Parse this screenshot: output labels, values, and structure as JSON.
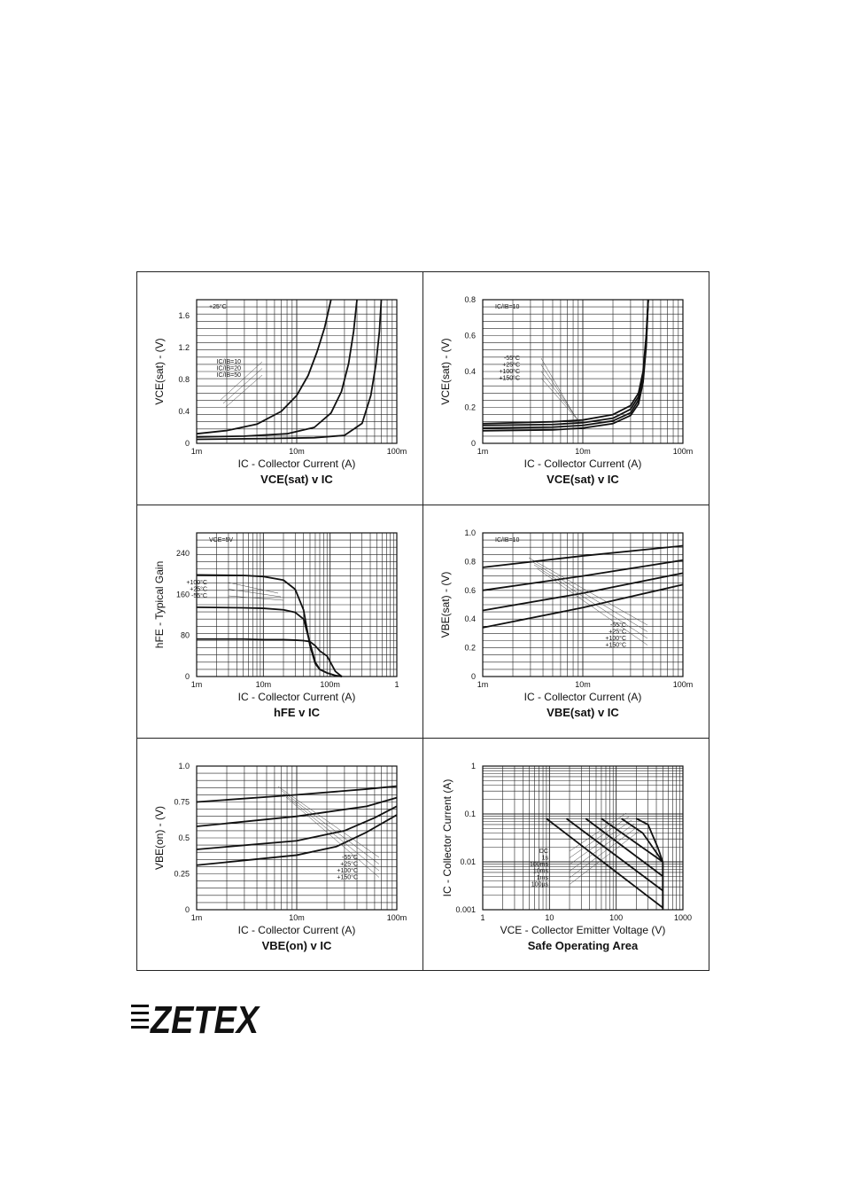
{
  "brand": {
    "name": "ZETEX"
  },
  "charts": [
    {
      "type": "line",
      "caption": "VCE(sat) v IC",
      "xlabel": "IC - Collector Current (A)",
      "ylabel": "VCE(sat) - (V)",
      "xscale": "log",
      "xlim": [
        0.001,
        0.1
      ],
      "x_ticks": [
        {
          "v": 0.001,
          "label": "1m"
        },
        {
          "v": 0.01,
          "label": "10m"
        },
        {
          "v": 0.1,
          "label": "100m"
        }
      ],
      "ylim": [
        0,
        1.8
      ],
      "y_ticks": [
        {
          "v": 0,
          "label": "0"
        },
        {
          "v": 0.4,
          "label": "0.4"
        },
        {
          "v": 0.8,
          "label": "0.8"
        },
        {
          "v": 1.2,
          "label": "1.2"
        },
        {
          "v": 1.6,
          "label": "1.6"
        }
      ],
      "annotations": [
        "+25°C"
      ],
      "legend": [
        "IC/IB=10",
        "IC/IB=20",
        "IC/IB=50"
      ],
      "series": [
        {
          "name": "IC/IB=10",
          "x": [
            0.001,
            0.002,
            0.004,
            0.007,
            0.01,
            0.013,
            0.016,
            0.019,
            0.022
          ],
          "y": [
            0.12,
            0.16,
            0.24,
            0.4,
            0.6,
            0.85,
            1.15,
            1.45,
            1.8
          ]
        },
        {
          "name": "IC/IB=20",
          "x": [
            0.001,
            0.003,
            0.008,
            0.015,
            0.022,
            0.028,
            0.033,
            0.037,
            0.04
          ],
          "y": [
            0.08,
            0.09,
            0.12,
            0.2,
            0.38,
            0.65,
            1.0,
            1.4,
            1.8
          ]
        },
        {
          "name": "IC/IB=50",
          "x": [
            0.001,
            0.005,
            0.015,
            0.03,
            0.045,
            0.055,
            0.062,
            0.067,
            0.07
          ],
          "y": [
            0.05,
            0.06,
            0.07,
            0.1,
            0.25,
            0.6,
            1.0,
            1.4,
            1.8
          ]
        }
      ]
    },
    {
      "type": "line",
      "caption": "VCE(sat) v IC",
      "xlabel": "IC - Collector Current (A)",
      "ylabel": "VCE(sat) - (V)",
      "xscale": "log",
      "xlim": [
        0.001,
        0.1
      ],
      "x_ticks": [
        {
          "v": 0.001,
          "label": "1m"
        },
        {
          "v": 0.01,
          "label": "10m"
        },
        {
          "v": 0.1,
          "label": "100m"
        }
      ],
      "ylim": [
        0,
        0.8
      ],
      "y_ticks": [
        {
          "v": 0,
          "label": "0"
        },
        {
          "v": 0.2,
          "label": "0.2"
        },
        {
          "v": 0.4,
          "label": "0.4"
        },
        {
          "v": 0.6,
          "label": "0.6"
        },
        {
          "v": 0.8,
          "label": "0.8"
        }
      ],
      "annotations": [
        "IC/IB=10"
      ],
      "legend": [
        "-55°C",
        "+25°C",
        "+100°C",
        "+150°C"
      ],
      "series": [
        {
          "name": "-55°C",
          "x": [
            0.001,
            0.005,
            0.01,
            0.02,
            0.03,
            0.036,
            0.04,
            0.043,
            0.045
          ],
          "y": [
            0.11,
            0.12,
            0.13,
            0.16,
            0.21,
            0.28,
            0.4,
            0.6,
            0.8
          ]
        },
        {
          "name": "+25°C",
          "x": [
            0.001,
            0.005,
            0.01,
            0.02,
            0.03,
            0.036,
            0.04,
            0.043,
            0.045
          ],
          "y": [
            0.1,
            0.105,
            0.115,
            0.14,
            0.19,
            0.26,
            0.38,
            0.58,
            0.8
          ]
        },
        {
          "name": "+100°C",
          "x": [
            0.001,
            0.005,
            0.01,
            0.02,
            0.03,
            0.036,
            0.04,
            0.043,
            0.045
          ],
          "y": [
            0.085,
            0.09,
            0.1,
            0.125,
            0.17,
            0.24,
            0.36,
            0.56,
            0.8
          ]
        },
        {
          "name": "+150°C",
          "x": [
            0.001,
            0.005,
            0.01,
            0.02,
            0.03,
            0.036,
            0.04,
            0.043,
            0.045
          ],
          "y": [
            0.07,
            0.075,
            0.085,
            0.11,
            0.155,
            0.22,
            0.34,
            0.54,
            0.8
          ]
        }
      ]
    },
    {
      "type": "line",
      "caption": "hFE v IC",
      "xlabel": "IC - Collector Current (A)",
      "ylabel": "hFE - Typical Gain",
      "xscale": "log",
      "xlim": [
        0.001,
        1
      ],
      "x_ticks": [
        {
          "v": 0.001,
          "label": "1m"
        },
        {
          "v": 0.01,
          "label": "10m"
        },
        {
          "v": 0.1,
          "label": "100m"
        },
        {
          "v": 1,
          "label": "1"
        }
      ],
      "ylim": [
        0,
        280
      ],
      "y_ticks": [
        {
          "v": 0,
          "label": "0"
        },
        {
          "v": 80,
          "label": "80"
        },
        {
          "v": 160,
          "label": "160"
        },
        {
          "v": 240,
          "label": "240"
        }
      ],
      "annotations": [
        "VCE=5V"
      ],
      "legend": [
        "+100°C",
        "+25°C",
        "-55°C"
      ],
      "series": [
        {
          "name": "+100°C",
          "x": [
            0.001,
            0.005,
            0.01,
            0.02,
            0.03,
            0.04,
            0.05,
            0.06,
            0.07,
            0.09,
            0.12,
            0.15
          ],
          "y": [
            198,
            197,
            195,
            188,
            170,
            130,
            60,
            25,
            14,
            7,
            2,
            0
          ]
        },
        {
          "name": "+25°C",
          "x": [
            0.001,
            0.005,
            0.01,
            0.02,
            0.03,
            0.04,
            0.05,
            0.06,
            0.07,
            0.09,
            0.12,
            0.15
          ],
          "y": [
            135,
            134,
            133,
            130,
            125,
            112,
            65,
            28,
            14,
            7,
            2,
            0
          ]
        },
        {
          "name": "-55°C",
          "x": [
            0.001,
            0.005,
            0.01,
            0.02,
            0.03,
            0.04,
            0.05,
            0.06,
            0.07,
            0.09,
            0.12,
            0.15
          ],
          "y": [
            73,
            73,
            72,
            72,
            71,
            70,
            68,
            60,
            50,
            40,
            10,
            0
          ]
        }
      ]
    },
    {
      "type": "line",
      "caption": "VBE(sat) v IC",
      "xlabel": "IC - Collector Current (A)",
      "ylabel": "VBE(sat) - (V)",
      "xscale": "log",
      "xlim": [
        0.001,
        0.1
      ],
      "x_ticks": [
        {
          "v": 0.001,
          "label": "1m"
        },
        {
          "v": 0.01,
          "label": "10m"
        },
        {
          "v": 0.1,
          "label": "100m"
        }
      ],
      "ylim": [
        0,
        1.0
      ],
      "y_ticks": [
        {
          "v": 0,
          "label": "0"
        },
        {
          "v": 0.2,
          "label": "0.2"
        },
        {
          "v": 0.4,
          "label": "0.4"
        },
        {
          "v": 0.6,
          "label": "0.6"
        },
        {
          "v": 0.8,
          "label": "0.8"
        },
        {
          "v": 1.0,
          "label": "1.0"
        }
      ],
      "annotations": [
        "IC/IB=10"
      ],
      "legend": [
        "-55°C",
        "+25°C",
        "+100°C",
        "+150°C"
      ],
      "series": [
        {
          "name": "-55°C",
          "x": [
            0.001,
            0.01,
            0.1
          ],
          "y": [
            0.76,
            0.84,
            0.91
          ]
        },
        {
          "name": "+25°C",
          "x": [
            0.001,
            0.01,
            0.1
          ],
          "y": [
            0.6,
            0.7,
            0.81
          ]
        },
        {
          "name": "+100°C",
          "x": [
            0.001,
            0.01,
            0.1
          ],
          "y": [
            0.46,
            0.58,
            0.72
          ]
        },
        {
          "name": "+150°C",
          "x": [
            0.001,
            0.01,
            0.1
          ],
          "y": [
            0.34,
            0.48,
            0.64
          ]
        }
      ]
    },
    {
      "type": "line",
      "caption": "VBE(on) v IC",
      "xlabel": "IC - Collector Current (A)",
      "ylabel": "VBE(on) - (V)",
      "xscale": "log",
      "xlim": [
        0.001,
        0.1
      ],
      "x_ticks": [
        {
          "v": 0.001,
          "label": "1m"
        },
        {
          "v": 0.01,
          "label": "10m"
        },
        {
          "v": 0.1,
          "label": "100m"
        }
      ],
      "ylim": [
        0,
        1.0
      ],
      "y_ticks": [
        {
          "v": 0,
          "label": "0"
        },
        {
          "v": 0.25,
          "label": "0.25"
        },
        {
          "v": 0.5,
          "label": "0.5"
        },
        {
          "v": 0.75,
          "label": "0.75"
        },
        {
          "v": 1.0,
          "label": "1.0"
        }
      ],
      "annotations": [],
      "legend": [
        "-55°C",
        "+25°C",
        "+100°C",
        "+150°C"
      ],
      "series": [
        {
          "name": "-55°C",
          "x": [
            0.001,
            0.01,
            0.05,
            0.1
          ],
          "y": [
            0.75,
            0.8,
            0.84,
            0.86
          ]
        },
        {
          "name": "+25°C",
          "x": [
            0.001,
            0.01,
            0.05,
            0.1
          ],
          "y": [
            0.58,
            0.65,
            0.72,
            0.78
          ]
        },
        {
          "name": "+100°C",
          "x": [
            0.001,
            0.01,
            0.03,
            0.06,
            0.1
          ],
          "y": [
            0.42,
            0.48,
            0.55,
            0.64,
            0.72
          ]
        },
        {
          "name": "+150°C",
          "x": [
            0.001,
            0.01,
            0.025,
            0.05,
            0.1
          ],
          "y": [
            0.31,
            0.38,
            0.44,
            0.54,
            0.66
          ]
        }
      ]
    },
    {
      "type": "line",
      "caption": "Safe Operating Area",
      "xlabel": "VCE - Collector Emitter Voltage (V)",
      "ylabel": "IC - Collector Current (A)",
      "xscale": "log",
      "yscale": "log",
      "xlim": [
        1,
        1000
      ],
      "x_ticks": [
        {
          "v": 1,
          "label": "1"
        },
        {
          "v": 10,
          "label": "10"
        },
        {
          "v": 100,
          "label": "100"
        },
        {
          "v": 1000,
          "label": "1000"
        }
      ],
      "ylim": [
        0.001,
        1
      ],
      "y_ticks": [
        {
          "v": 0.001,
          "label": "0.001"
        },
        {
          "v": 0.01,
          "label": "0.01"
        },
        {
          "v": 0.1,
          "label": "0.1"
        },
        {
          "v": 1,
          "label": "1"
        }
      ],
      "annotations": [],
      "legend": [
        "DC",
        "1s",
        "100ms",
        "10ms",
        "1ms",
        "100µs"
      ],
      "series": [
        {
          "name": "DC",
          "x": [
            9,
            500
          ],
          "y": [
            0.08,
            0.0011
          ]
        },
        {
          "name": "1s",
          "x": [
            18,
            500
          ],
          "y": [
            0.08,
            0.0025
          ]
        },
        {
          "name": "100ms",
          "x": [
            35,
            500
          ],
          "y": [
            0.08,
            0.005
          ]
        },
        {
          "name": "10ms",
          "x": [
            60,
            500
          ],
          "y": [
            0.08,
            0.01
          ]
        },
        {
          "name": "1ms",
          "x": [
            120,
            250,
            500,
            500
          ],
          "y": [
            0.08,
            0.04,
            0.01,
            0.001
          ]
        },
        {
          "name": "100µs",
          "x": [
            200,
            300,
            420,
            500,
            500
          ],
          "y": [
            0.08,
            0.06,
            0.02,
            0.01,
            0.001
          ]
        }
      ]
    }
  ]
}
